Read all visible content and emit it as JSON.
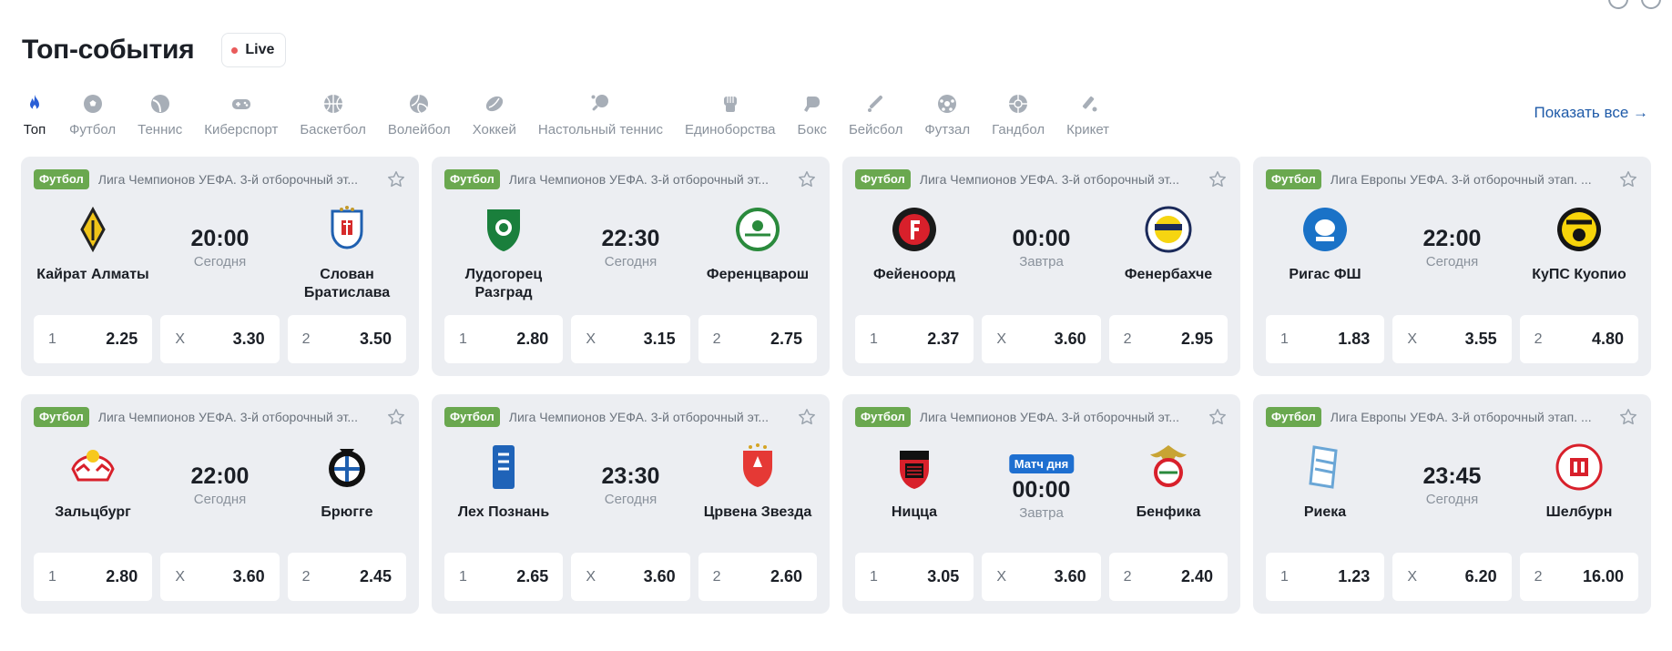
{
  "header": {
    "title": "Топ-события",
    "live_label": "Live"
  },
  "sports": [
    {
      "label": "Топ",
      "icon": "flame-icon",
      "active": true
    },
    {
      "label": "Футбол",
      "icon": "football-icon"
    },
    {
      "label": "Теннис",
      "icon": "tennis-icon"
    },
    {
      "label": "Киберспорт",
      "icon": "gamepad-icon"
    },
    {
      "label": "Баскетбол",
      "icon": "basketball-icon"
    },
    {
      "label": "Волейбол",
      "icon": "volleyball-icon"
    },
    {
      "label": "Хоккей",
      "icon": "hockey-icon"
    },
    {
      "label": "Настольный теннис",
      "icon": "table-tennis-icon"
    },
    {
      "label": "Единоборства",
      "icon": "fist-icon"
    },
    {
      "label": "Бокс",
      "icon": "boxing-glove-icon"
    },
    {
      "label": "Бейсбол",
      "icon": "baseball-bat-icon"
    },
    {
      "label": "Футзал",
      "icon": "futsal-ball-icon"
    },
    {
      "label": "Гандбол",
      "icon": "handball-icon"
    },
    {
      "label": "Крикет",
      "icon": "cricket-bat-icon"
    }
  ],
  "show_all": "Показать все →",
  "colors": {
    "sport_badge": "#6aa84f",
    "match_tag": "#1e6fd0",
    "accent": "#1e5aa8",
    "card_bg": "#eceef2"
  },
  "events": [
    {
      "sport": "Футбол",
      "league": "Лига Чемпионов УЕФА. 3-й отборочный эт...",
      "home": "Кайрат Алматы",
      "away": "Слован Братислава",
      "time": "20:00",
      "day": "Сегодня",
      "tag": "",
      "odds": [
        {
          "k": "1",
          "v": "2.25"
        },
        {
          "k": "X",
          "v": "3.30"
        },
        {
          "k": "2",
          "v": "3.50"
        }
      ]
    },
    {
      "sport": "Футбол",
      "league": "Лига Чемпионов УЕФА. 3-й отборочный эт...",
      "home": "Лудогорец Разград",
      "away": "Ференцварош",
      "time": "22:30",
      "day": "Сегодня",
      "tag": "",
      "odds": [
        {
          "k": "1",
          "v": "2.80"
        },
        {
          "k": "X",
          "v": "3.15"
        },
        {
          "k": "2",
          "v": "2.75"
        }
      ]
    },
    {
      "sport": "Футбол",
      "league": "Лига Чемпионов УЕФА. 3-й отборочный эт...",
      "home": "Фейеноорд",
      "away": "Фенербахче",
      "time": "00:00",
      "day": "Завтра",
      "tag": "",
      "odds": [
        {
          "k": "1",
          "v": "2.37"
        },
        {
          "k": "X",
          "v": "3.60"
        },
        {
          "k": "2",
          "v": "2.95"
        }
      ]
    },
    {
      "sport": "Футбол",
      "league": "Лига Европы УЕФА. 3-й отборочный этап. ...",
      "home": "Ригас ФШ",
      "away": "КуПС Куопио",
      "time": "22:00",
      "day": "Сегодня",
      "tag": "",
      "odds": [
        {
          "k": "1",
          "v": "1.83"
        },
        {
          "k": "X",
          "v": "3.55"
        },
        {
          "k": "2",
          "v": "4.80"
        }
      ]
    },
    {
      "sport": "Футбол",
      "league": "Лига Чемпионов УЕФА. 3-й отборочный эт...",
      "home": "Зальцбург",
      "away": "Брюгге",
      "time": "22:00",
      "day": "Сегодня",
      "tag": "",
      "odds": [
        {
          "k": "1",
          "v": "2.80"
        },
        {
          "k": "X",
          "v": "3.60"
        },
        {
          "k": "2",
          "v": "2.45"
        }
      ]
    },
    {
      "sport": "Футбол",
      "league": "Лига Чемпионов УЕФА. 3-й отборочный эт...",
      "home": "Лех Познань",
      "away": "Црвена Звезда",
      "time": "23:30",
      "day": "Сегодня",
      "tag": "",
      "odds": [
        {
          "k": "1",
          "v": "2.65"
        },
        {
          "k": "X",
          "v": "3.60"
        },
        {
          "k": "2",
          "v": "2.60"
        }
      ]
    },
    {
      "sport": "Футбол",
      "league": "Лига Чемпионов УЕФА. 3-й отборочный эт...",
      "home": "Ницца",
      "away": "Бенфика",
      "time": "00:00",
      "day": "Завтра",
      "tag": "Матч дня",
      "odds": [
        {
          "k": "1",
          "v": "3.05"
        },
        {
          "k": "X",
          "v": "3.60"
        },
        {
          "k": "2",
          "v": "2.40"
        }
      ]
    },
    {
      "sport": "Футбол",
      "league": "Лига Европы УЕФА. 3-й отборочный этап. ...",
      "home": "Риека",
      "away": "Шелбурн",
      "time": "23:45",
      "day": "Сегодня",
      "tag": "",
      "odds": [
        {
          "k": "1",
          "v": "1.23"
        },
        {
          "k": "X",
          "v": "6.20"
        },
        {
          "k": "2",
          "v": "16.00"
        }
      ]
    }
  ]
}
